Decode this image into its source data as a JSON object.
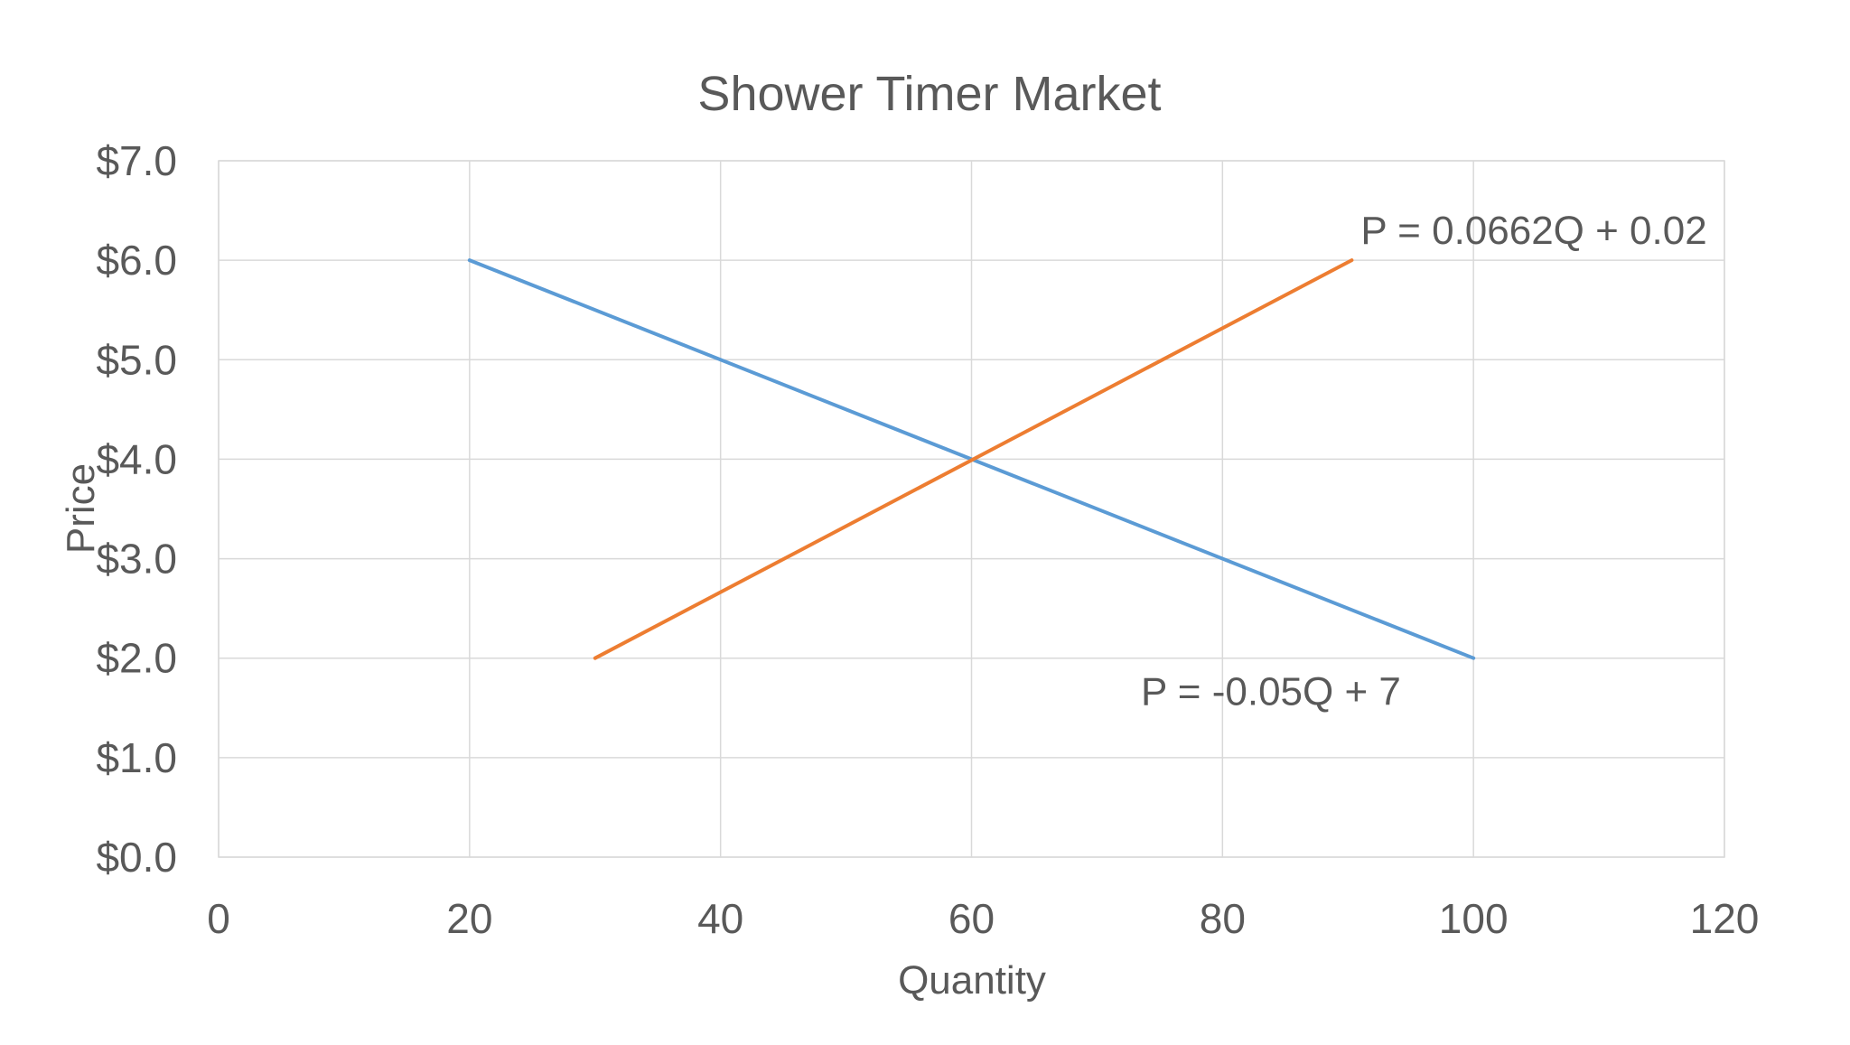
{
  "chart_data": {
    "type": "line",
    "title": "Shower Timer Market",
    "xlabel": "Quantity",
    "ylabel": "Price",
    "xlim": [
      0,
      120
    ],
    "ylim": [
      0,
      7
    ],
    "x_ticks": [
      0,
      20,
      40,
      60,
      80,
      100,
      120
    ],
    "y_ticks": [
      0,
      1,
      2,
      3,
      4,
      5,
      6,
      7
    ],
    "x_tick_labels": [
      "0",
      "20",
      "40",
      "60",
      "80",
      "100",
      "120"
    ],
    "y_tick_labels": [
      "$0.0",
      "$1.0",
      "$2.0",
      "$3.0",
      "$4.0",
      "$5.0",
      "$6.0",
      "$7.0"
    ],
    "grid": true,
    "legend": "none",
    "series": [
      {
        "color": "#5b9bd5",
        "points": [
          [
            20,
            6.0
          ],
          [
            100,
            2.0
          ]
        ]
      },
      {
        "color": "#ed7d31",
        "points": [
          [
            30,
            2.0
          ],
          [
            90.3,
            6.0
          ]
        ]
      }
    ],
    "annotations": [
      {
        "text": "P = 0.0662Q + 0.02",
        "x": 90.3,
        "y": 6.0
      },
      {
        "text": "P = -0.05Q + 7",
        "x": 73.5,
        "y": 2.0
      }
    ]
  }
}
